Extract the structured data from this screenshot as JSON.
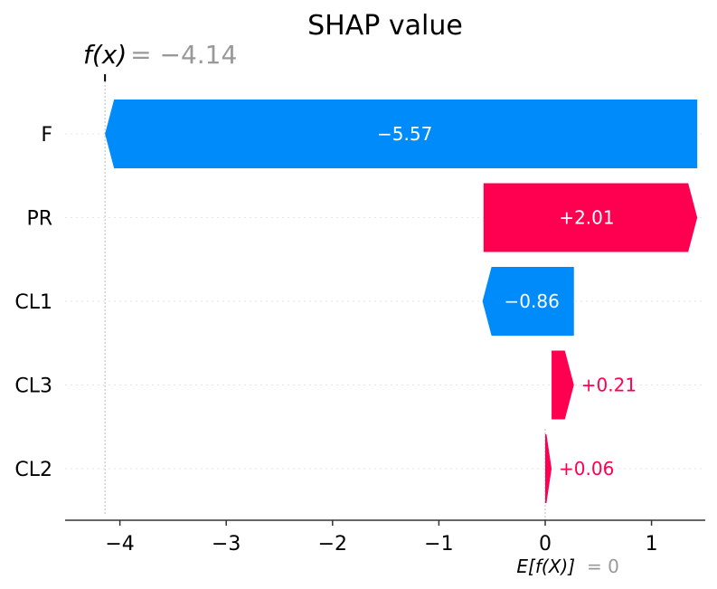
{
  "chart_data": {
    "type": "waterfall",
    "title": "SHAP value",
    "fx_label": "f(x)",
    "fx_value_text": "= −4.14",
    "fx_value": -4.14,
    "ex_label": "E[f(X)]",
    "ex_value_text": "= 0",
    "ex_value": 0,
    "xlim": [
      -4.5,
      1.45
    ],
    "xticks": [
      -4,
      -3,
      -2,
      -1,
      0,
      1
    ],
    "xtick_labels": [
      "−4",
      "−3",
      "−2",
      "−1",
      "0",
      "1"
    ],
    "features": [
      {
        "name": "F",
        "value": -5.57,
        "label": "−5.57",
        "start": 1.43,
        "end": -4.14
      },
      {
        "name": "PR",
        "value": 2.01,
        "label": "+2.01",
        "start": -0.58,
        "end": 1.43
      },
      {
        "name": "CL1",
        "value": -0.86,
        "label": "−0.86",
        "start": 0.27,
        "end": -0.59
      },
      {
        "name": "CL3",
        "value": 0.21,
        "label": "+0.21",
        "start": 0.06,
        "end": 0.27
      },
      {
        "name": "CL2",
        "value": 0.06,
        "label": "+0.06",
        "start": 0.0,
        "end": 0.06
      }
    ],
    "colors": {
      "positive": "#ff0051",
      "negative": "#008bfb",
      "muted": "#999999",
      "text": "#000000"
    }
  }
}
